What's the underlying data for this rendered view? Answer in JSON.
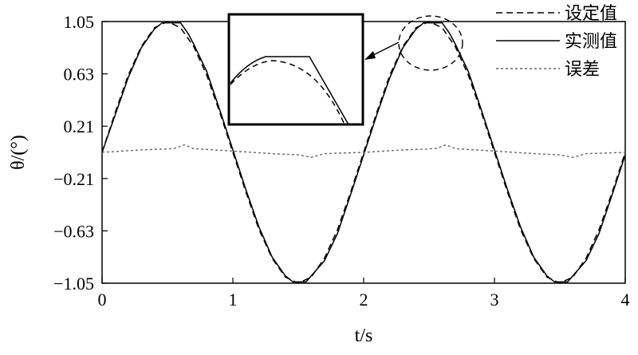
{
  "chart_data": {
    "type": "line",
    "title": "",
    "xlabel": "t/s",
    "ylabel": "θ/(°)",
    "xlim": [
      0,
      4
    ],
    "ylim": [
      -1.05,
      1.05
    ],
    "x_ticks": [
      0,
      1,
      2,
      3,
      4
    ],
    "x_tick_labels": [
      "0",
      "1",
      "2",
      "3",
      "4"
    ],
    "y_ticks": [
      1.05,
      0.63,
      0.21,
      -0.21,
      -0.63,
      -1.05
    ],
    "y_tick_labels": [
      "1.05",
      "0.63",
      "0.21",
      "−0.21",
      "−0.63",
      "−1.05"
    ],
    "grid": false,
    "legend_position": "top-right",
    "series": [
      {
        "name": "设定值",
        "style": "dashed",
        "color": "#000000",
        "x": [
          0,
          0.1,
          0.2,
          0.3,
          0.4,
          0.5,
          0.6,
          0.7,
          0.8,
          0.9,
          1.0,
          1.1,
          1.2,
          1.3,
          1.4,
          1.5,
          1.6,
          1.7,
          1.8,
          1.9,
          2.0,
          2.1,
          2.2,
          2.3,
          2.4,
          2.5,
          2.6,
          2.7,
          2.8,
          2.9,
          3.0,
          3.1,
          3.2,
          3.3,
          3.4,
          3.5,
          3.6,
          3.7,
          3.8,
          3.9,
          4.0
        ],
        "y": [
          0,
          0.32,
          0.62,
          0.85,
          1.0,
          1.05,
          1.0,
          0.85,
          0.62,
          0.32,
          0,
          -0.32,
          -0.62,
          -0.85,
          -1.0,
          -1.05,
          -1.0,
          -0.85,
          -0.62,
          -0.32,
          0,
          0.32,
          0.62,
          0.85,
          1.0,
          1.05,
          1.0,
          0.85,
          0.62,
          0.32,
          0,
          -0.32,
          -0.62,
          -0.85,
          -1.0,
          -1.05,
          -1.0,
          -0.85,
          -0.62,
          -0.32,
          0
        ]
      },
      {
        "name": "实测值",
        "style": "solid",
        "color": "#000000",
        "x": [
          0,
          0.1,
          0.2,
          0.3,
          0.4,
          0.46,
          0.6,
          0.66,
          0.7,
          0.8,
          0.9,
          1.0,
          1.1,
          1.2,
          1.3,
          1.4,
          1.46,
          1.56,
          1.6,
          1.7,
          1.8,
          1.9,
          2.0,
          2.1,
          2.2,
          2.3,
          2.4,
          2.46,
          2.6,
          2.66,
          2.7,
          2.8,
          2.9,
          3.0,
          3.1,
          3.2,
          3.3,
          3.4,
          3.46,
          3.56,
          3.6,
          3.7,
          3.8,
          3.9,
          4.0
        ],
        "y": [
          0,
          0.3,
          0.6,
          0.84,
          0.99,
          1.04,
          1.04,
          0.95,
          0.87,
          0.65,
          0.34,
          0.02,
          -0.3,
          -0.6,
          -0.84,
          -0.99,
          -1.04,
          -1.04,
          -0.99,
          -0.87,
          -0.65,
          -0.34,
          -0.02,
          0.3,
          0.6,
          0.84,
          0.99,
          1.04,
          1.04,
          0.95,
          0.87,
          0.65,
          0.34,
          0.02,
          -0.3,
          -0.6,
          -0.84,
          -0.99,
          -1.04,
          -1.04,
          -0.99,
          -0.87,
          -0.65,
          -0.34,
          -0.02
        ]
      },
      {
        "name": "误差",
        "style": "dotted",
        "color": "#666666",
        "x": [
          0,
          0.3,
          0.55,
          0.63,
          0.7,
          1.0,
          1.3,
          1.5,
          1.6,
          1.7,
          2.0,
          2.3,
          2.55,
          2.63,
          2.7,
          3.0,
          3.3,
          3.5,
          3.6,
          3.7,
          4.0
        ],
        "y": [
          0.0,
          0.02,
          0.03,
          0.06,
          0.03,
          0.01,
          -0.01,
          -0.02,
          -0.04,
          -0.01,
          0.0,
          0.02,
          0.03,
          0.06,
          0.03,
          0.01,
          -0.01,
          -0.02,
          -0.04,
          -0.01,
          0.0
        ]
      }
    ],
    "annotations": [
      "dashed circle around peak near t=2.5",
      "inset box magnifying peak region"
    ]
  }
}
